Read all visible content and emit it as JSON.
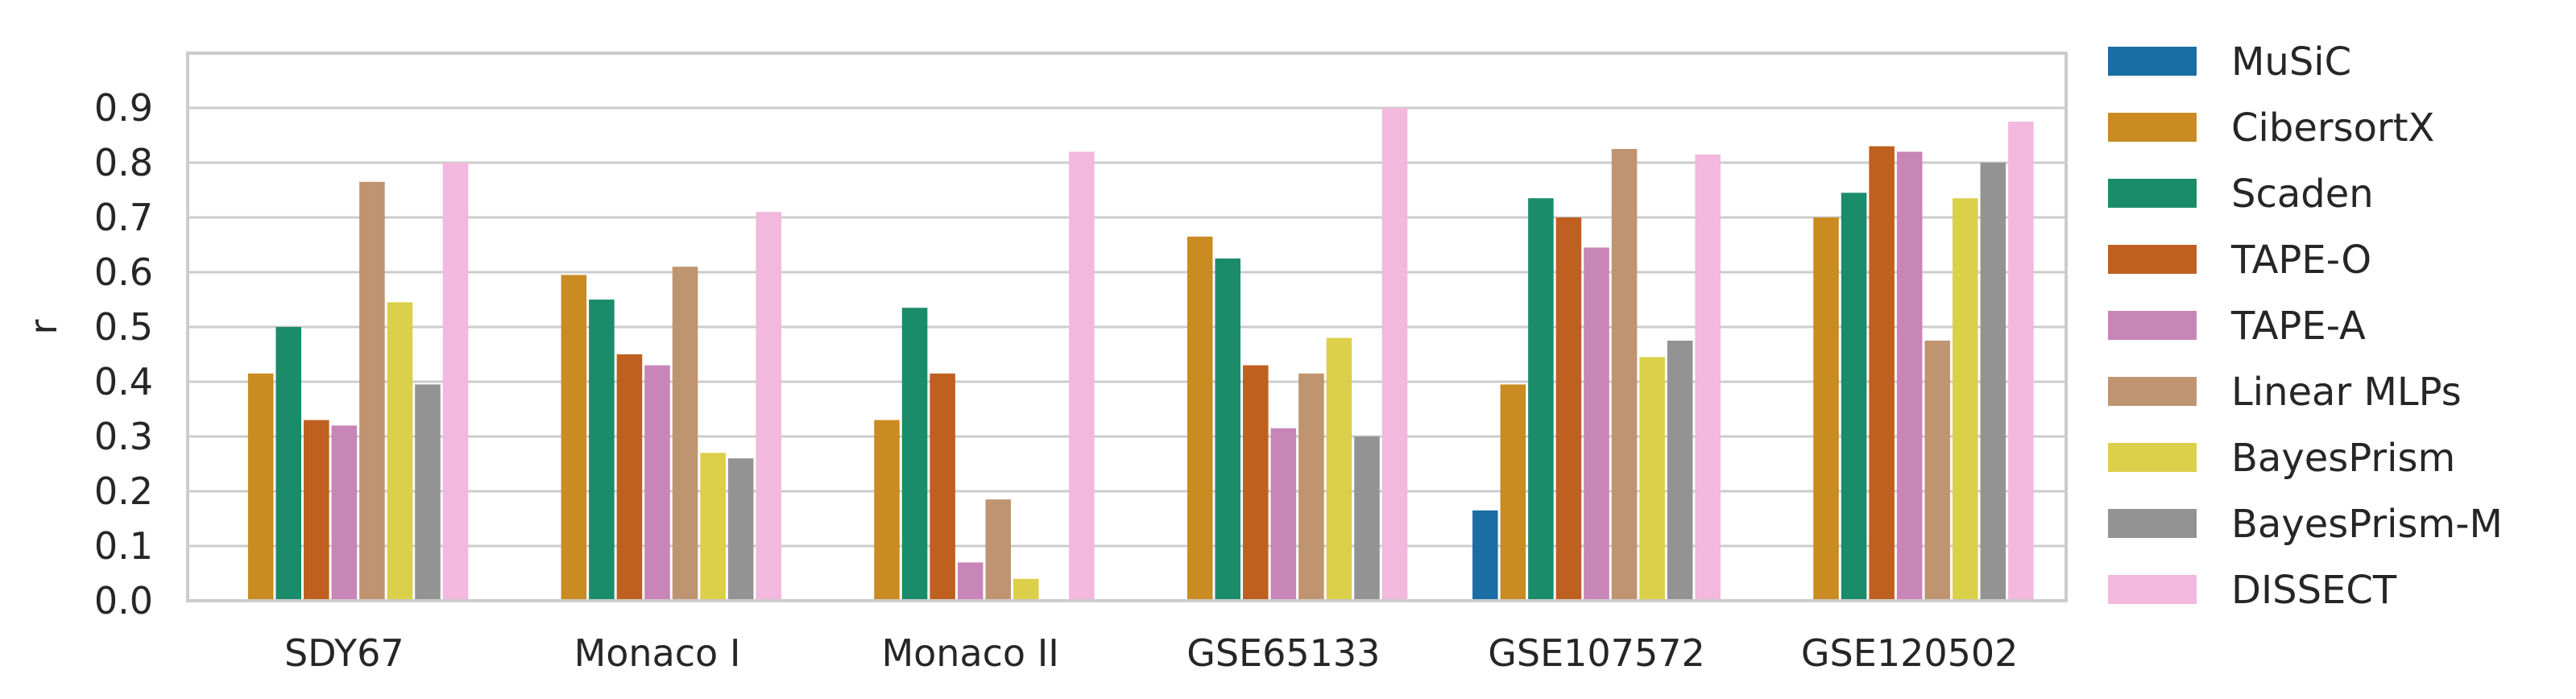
{
  "chart_data": {
    "type": "bar",
    "ylabel": "r",
    "xlabel": "",
    "ylim": [
      0.0,
      1.0
    ],
    "yticks": [
      "0.0",
      "0.1",
      "0.2",
      "0.3",
      "0.4",
      "0.5",
      "0.6",
      "0.7",
      "0.8",
      "0.9"
    ],
    "grid": "horizontal",
    "legend_position": "outside-right",
    "categories": [
      "SDY67",
      "Monaco I",
      "Monaco II",
      "GSE65133",
      "GSE107572",
      "GSE120502"
    ],
    "series": [
      {
        "name": "MuSiC",
        "color": "#1a6ea4",
        "values": [
          0,
          0,
          0,
          0,
          0.165,
          0
        ]
      },
      {
        "name": "CibersortX",
        "color": "#c98b22",
        "values": [
          0.415,
          0.595,
          0.33,
          0.665,
          0.395,
          0.7
        ]
      },
      {
        "name": "Scaden",
        "color": "#1a8c6a",
        "values": [
          0.5,
          0.55,
          0.535,
          0.625,
          0.735,
          0.745
        ]
      },
      {
        "name": "TAPE-O",
        "color": "#bf6020",
        "values": [
          0.33,
          0.45,
          0.415,
          0.43,
          0.7,
          0.83
        ]
      },
      {
        "name": "TAPE-A",
        "color": "#c885b8",
        "values": [
          0.32,
          0.43,
          0.07,
          0.315,
          0.645,
          0.82
        ]
      },
      {
        "name": "Linear MLPs",
        "color": "#bf9470",
        "values": [
          0.765,
          0.61,
          0.185,
          0.415,
          0.825,
          0.475
        ]
      },
      {
        "name": "BayesPrism",
        "color": "#dccf4a",
        "values": [
          0.545,
          0.27,
          0.04,
          0.48,
          0.445,
          0.735
        ]
      },
      {
        "name": "BayesPrism-M",
        "color": "#939393",
        "values": [
          0.395,
          0.26,
          0,
          0.3,
          0.475,
          0.8
        ]
      },
      {
        "name": "DISSECT",
        "color": "#f2b8dd",
        "values": [
          0.8,
          0.71,
          0.82,
          0.9,
          0.815,
          0.875
        ]
      }
    ]
  }
}
